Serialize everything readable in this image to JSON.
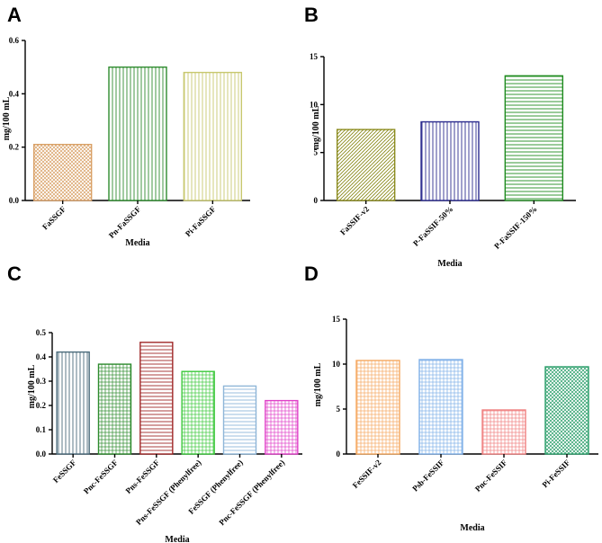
{
  "chart_data": [
    {
      "panel": "A",
      "type": "bar",
      "xlabel": "Media",
      "ylabel": "mg/100 mL",
      "ylim": [
        0,
        0.6
      ],
      "yticks": [
        0.0,
        0.2,
        0.4,
        0.6
      ],
      "ytick_labels": [
        "0.0",
        "0.2",
        "0.4",
        "0.6"
      ],
      "categories": [
        "FaSSGF",
        "Pn-FaSSGF",
        "Pi-FaSSGF"
      ],
      "values": [
        0.21,
        0.5,
        0.48
      ],
      "colors": [
        "#d9a066",
        "#2e8b2e",
        "#c8c86e"
      ],
      "patterns": [
        "crosshatch",
        "vlines",
        "vlines"
      ]
    },
    {
      "panel": "B",
      "type": "bar",
      "xlabel": "Media",
      "ylabel": "mg/100 mL",
      "ylim": [
        0,
        15
      ],
      "yticks": [
        0,
        5,
        10,
        15
      ],
      "ytick_labels": [
        "0",
        "5",
        "10",
        "15"
      ],
      "categories": [
        "FaSSIF-v2",
        "P-FaSSIF-50%",
        "P-FaSSIF-150%"
      ],
      "values": [
        7.4,
        8.2,
        13.0
      ],
      "colors": [
        "#8b8b1e",
        "#2b2b8e",
        "#1e8b1e"
      ],
      "patterns": [
        "diag",
        "vlines",
        "hlines"
      ]
    },
    {
      "panel": "C",
      "type": "bar",
      "xlabel": "Media",
      "ylabel": "mg/100 mL",
      "ylim": [
        0,
        0.5
      ],
      "yticks": [
        0.0,
        0.1,
        0.2,
        0.3,
        0.4,
        0.5
      ],
      "ytick_labels": [
        "0.0",
        "0.1",
        "0.2",
        "0.3",
        "0.4",
        "0.5"
      ],
      "categories": [
        "FeSSGF",
        "Pnc-FeSSGF",
        "Pns-FeSSGF",
        "Pns-FeSSGF (Phenylfree)",
        "FeSSGF (Phenylfree)",
        "Pnc-FeSSGF (Phenylfree)"
      ],
      "values": [
        0.42,
        0.37,
        0.46,
        0.34,
        0.28,
        0.22
      ],
      "colors": [
        "#4a6a7a",
        "#2e8b2e",
        "#a02828",
        "#3cc83c",
        "#8fb6d8",
        "#e040c8"
      ],
      "patterns": [
        "vlines",
        "grid",
        "hlines",
        "grid",
        "hlines",
        "grid"
      ]
    },
    {
      "panel": "D",
      "type": "bar",
      "xlabel": "Media",
      "ylabel": "mg/100 mL",
      "ylim": [
        0,
        15
      ],
      "yticks": [
        0,
        5,
        10,
        15
      ],
      "ytick_labels": [
        "0",
        "5",
        "10",
        "15"
      ],
      "categories": [
        "FeSSIF-v2",
        "Psb-FeSSIF",
        "Pnc-FeSSIF",
        "Pi-FeSSIF"
      ],
      "values": [
        10.4,
        10.5,
        4.9,
        9.7
      ],
      "colors": [
        "#f5a860",
        "#7fb0e8",
        "#f08080",
        "#2a9e6a"
      ],
      "patterns": [
        "grid",
        "grid",
        "grid",
        "crosshatch"
      ]
    }
  ]
}
